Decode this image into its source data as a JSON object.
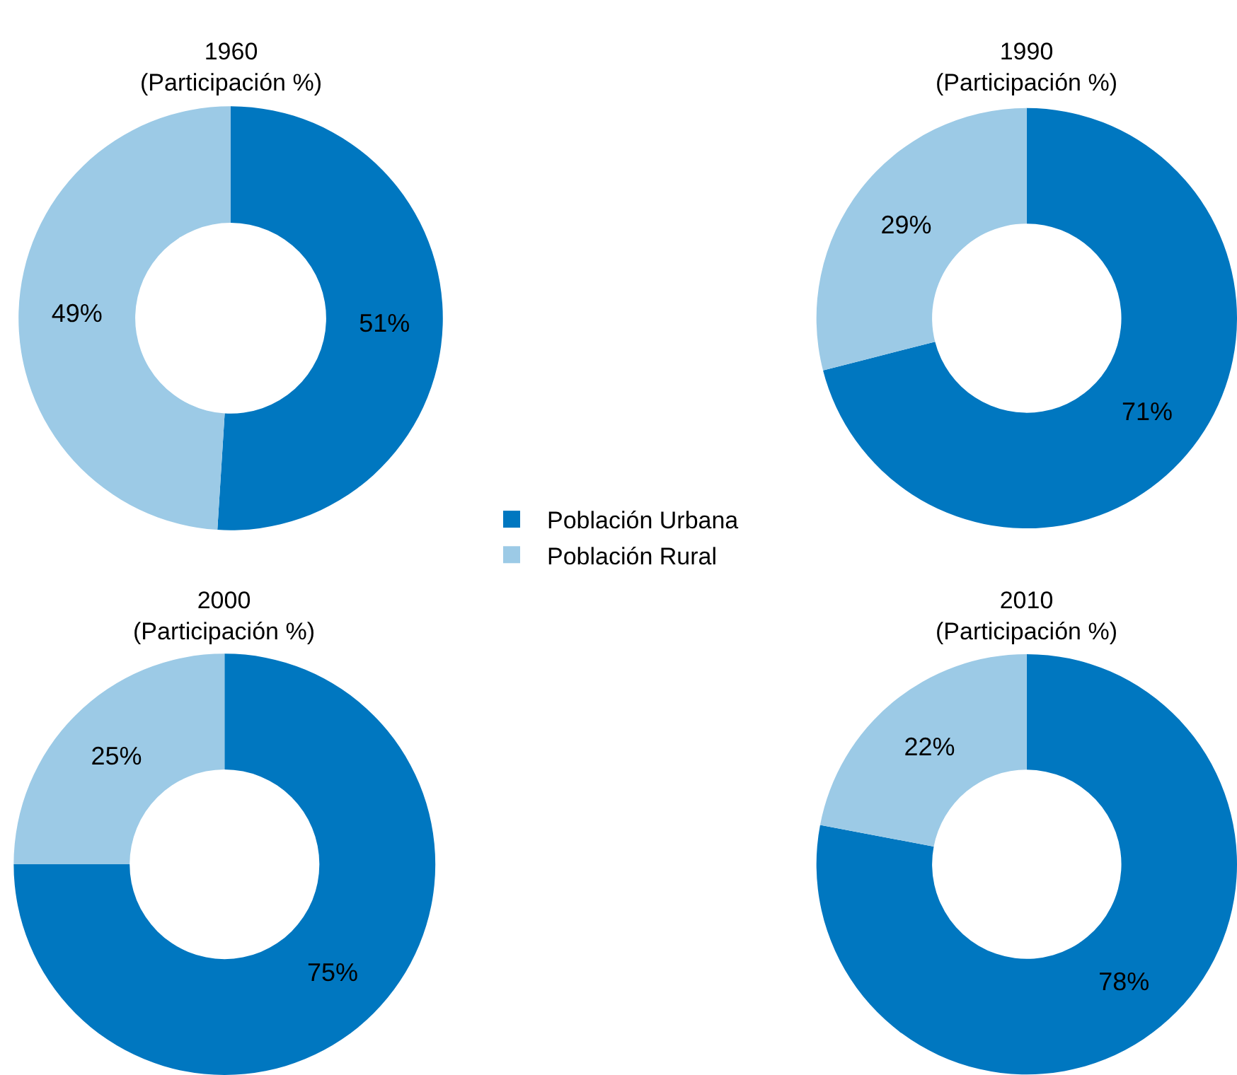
{
  "chart_data": [
    {
      "type": "donut",
      "title": "1960",
      "subtitle": "(Participación %)",
      "categories": [
        "Población Urbana",
        "Población Rural"
      ],
      "values": [
        51,
        49
      ],
      "colors": [
        "#0077c0",
        "#9ccae6"
      ],
      "value_labels": [
        "51%",
        "49%"
      ],
      "legend": "right"
    },
    {
      "type": "donut",
      "title": "1990",
      "subtitle": "(Participación %)",
      "categories": [
        null,
        null
      ],
      "values": [
        71,
        29
      ],
      "colors": [
        "#0077c0",
        "#9ccae6"
      ],
      "value_labels": [
        "71%",
        "29%"
      ]
    },
    {
      "type": "donut",
      "title": "2000",
      "subtitle": "(Participación %)",
      "categories": [
        null,
        null
      ],
      "values": [
        75,
        25
      ],
      "colors": [
        "#0077c0",
        "#9ccae6"
      ],
      "value_labels": [
        "75%",
        "25%"
      ]
    },
    {
      "type": "donut",
      "title": "2010",
      "subtitle": "(Participación %)",
      "categories": [
        null,
        null
      ],
      "values": [
        78,
        22
      ],
      "colors": [
        "#0077c0",
        "#9ccae6"
      ],
      "value_labels": [
        "78%",
        "22%"
      ]
    }
  ]
}
